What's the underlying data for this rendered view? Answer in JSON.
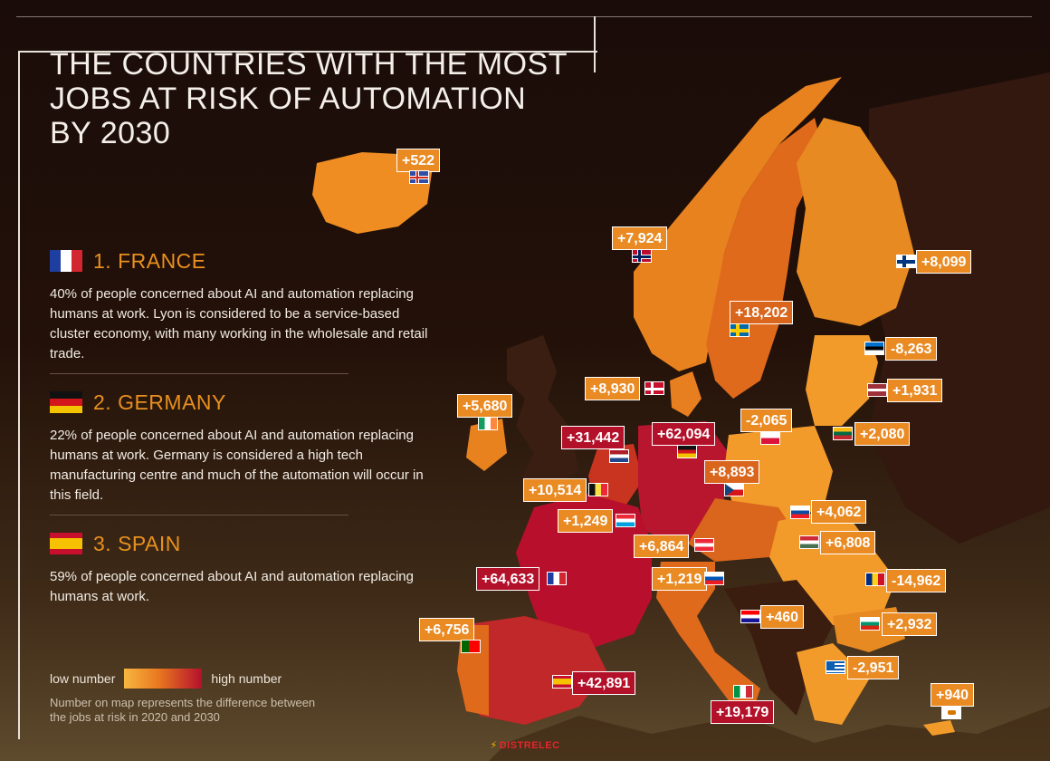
{
  "title_lines": [
    "THE COUNTRIES WITH THE MOST",
    "JOBS AT RISK OF AUTOMATION",
    "BY 2030"
  ],
  "entries": [
    {
      "rank": "1. FRANCE",
      "flag": "france-flag",
      "text": "40% of people concerned about AI and automation replacing humans at work. Lyon is considered to be a service-based cluster economy, with many working in the wholesale and retail trade."
    },
    {
      "rank": "2. GERMANY",
      "flag": "germany-flag",
      "text": "22% of people concerned about AI and automation replacing humans at work. Germany is considered a high tech manufacturing centre and much of the automation will occur in this field."
    },
    {
      "rank": "3. SPAIN",
      "flag": "spain-flag",
      "text": "59% of people concerned about AI and automation replacing humans at work."
    }
  ],
  "legend": {
    "low": "low number",
    "high": "high number",
    "note": "Number on map represents the difference between the jobs at risk in 2020 and 2030"
  },
  "brand": "DISTRELEC",
  "colors": {
    "low": "#f8b640",
    "mid": "#e8771f",
    "high": "#b5102c",
    "accent": "#e8901f"
  },
  "countries": [
    {
      "name": "Iceland",
      "value": "+522",
      "flag": "iceland-flag"
    },
    {
      "name": "Norway",
      "value": "+7,924",
      "flag": "norway-flag"
    },
    {
      "name": "Finland",
      "value": "+8,099",
      "flag": "finland-flag"
    },
    {
      "name": "Sweden",
      "value": "+18,202",
      "flag": "sweden-flag"
    },
    {
      "name": "Estonia",
      "value": "-8,263",
      "flag": "estonia-flag"
    },
    {
      "name": "Denmark",
      "value": "+8,930",
      "flag": "denmark-flag"
    },
    {
      "name": "Latvia",
      "value": "+1,931",
      "flag": "latvia-flag"
    },
    {
      "name": "Ireland",
      "value": "+5,680",
      "flag": "ireland-flag"
    },
    {
      "name": "Netherlands",
      "value": "+31,442",
      "flag": "netherlands-flag"
    },
    {
      "name": "Germany",
      "value": "+62,094",
      "flag": "germany-flag"
    },
    {
      "name": "Poland",
      "value": "-2,065",
      "flag": "poland-flag"
    },
    {
      "name": "Lithuania",
      "value": "+2,080",
      "flag": "lithuania-flag"
    },
    {
      "name": "Czechia",
      "value": "+8,893",
      "flag": "czech-flag"
    },
    {
      "name": "Belgium",
      "value": "+10,514",
      "flag": "belgium-flag"
    },
    {
      "name": "Luxembourg",
      "value": "+1,249",
      "flag": "luxembourg-flag"
    },
    {
      "name": "Slovakia",
      "value": "+4,062",
      "flag": "slovakia-flag"
    },
    {
      "name": "Austria",
      "value": "+6,864",
      "flag": "austria-flag"
    },
    {
      "name": "Hungary",
      "value": "+6,808",
      "flag": "hungary-flag"
    },
    {
      "name": "France",
      "value": "+64,633",
      "flag": "france-flag"
    },
    {
      "name": "Slovenia",
      "value": "+1,219",
      "flag": "slovenia-flag"
    },
    {
      "name": "Romania",
      "value": "-14,962",
      "flag": "romania-flag"
    },
    {
      "name": "Croatia",
      "value": "+460",
      "flag": "croatia-flag"
    },
    {
      "name": "Portugal",
      "value": "+6,756",
      "flag": "portugal-flag"
    },
    {
      "name": "Bulgaria",
      "value": "+2,932",
      "flag": "bulgaria-flag"
    },
    {
      "name": "Greece",
      "value": "-2,951",
      "flag": "greece-flag"
    },
    {
      "name": "Spain",
      "value": "+42,891",
      "flag": "spain-flag"
    },
    {
      "name": "Cyprus",
      "value": "+940",
      "flag": "cyprus-flag"
    },
    {
      "name": "Italy",
      "value": "+19,179",
      "flag": "italy-flag"
    }
  ]
}
